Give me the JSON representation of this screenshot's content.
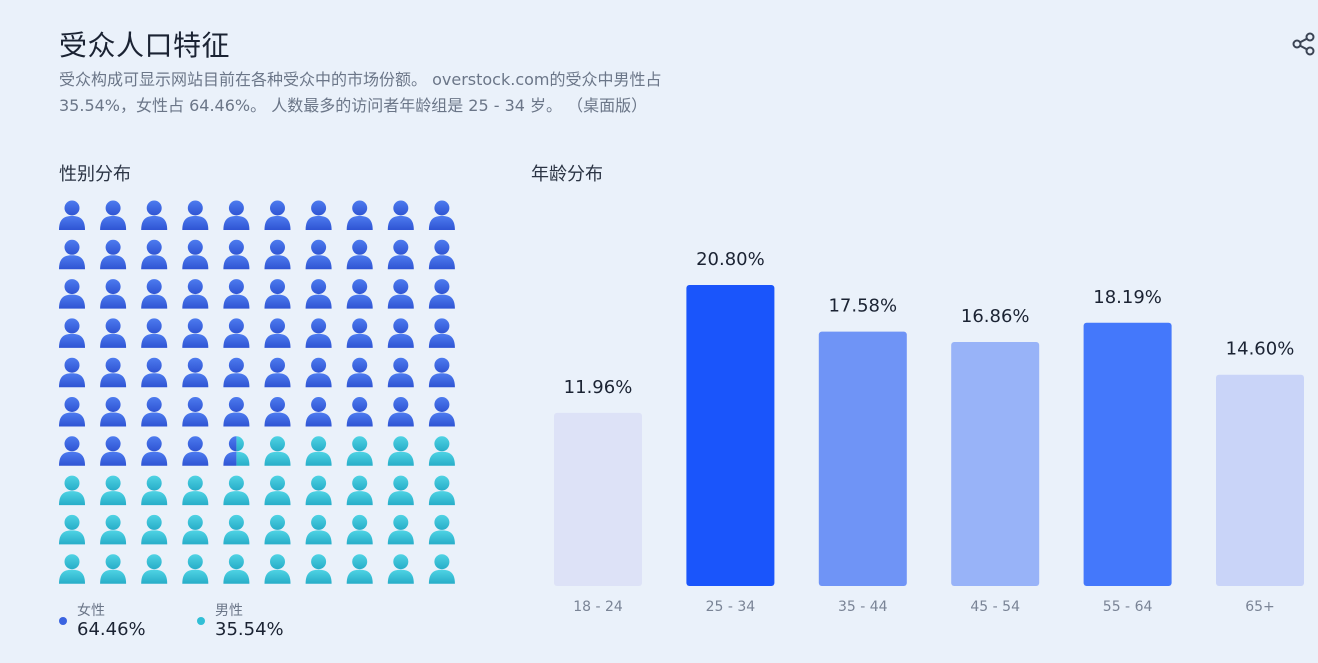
{
  "header": {
    "title": "受众人口特征",
    "description_line1": "受众构成可显示网站目前在各种受众中的市场份额。 overstock.com的受众中男性占",
    "description_line2": "35.54%，女性占 64.46%。 人数最多的访问者年龄组是 25 - 34 岁。 （桌面版）"
  },
  "gender": {
    "section_title": "性别分布",
    "female_label": "女性",
    "female_value": "64.46%",
    "male_label": "男性",
    "male_value": "35.54%",
    "female_share": 64.46,
    "female_color": "#3a63e0",
    "male_color": "#31bfd6"
  },
  "age": {
    "section_title": "年龄分布"
  },
  "chart_data": {
    "type": "bar",
    "categories": [
      "18 - 24",
      "25 - 34",
      "35 - 44",
      "45 - 54",
      "55 - 64",
      "65+"
    ],
    "values": [
      11.96,
      20.8,
      17.58,
      16.86,
      18.19,
      14.6
    ],
    "value_labels": [
      "11.96%",
      "20.80%",
      "17.58%",
      "16.86%",
      "18.19%",
      "14.60%"
    ],
    "colors": [
      "#dde2f7",
      "#1a55fb",
      "#6f94f6",
      "#98b3f8",
      "#4478fb",
      "#c9d4f8"
    ],
    "ylim": [
      0,
      20.8
    ],
    "grid": false
  }
}
